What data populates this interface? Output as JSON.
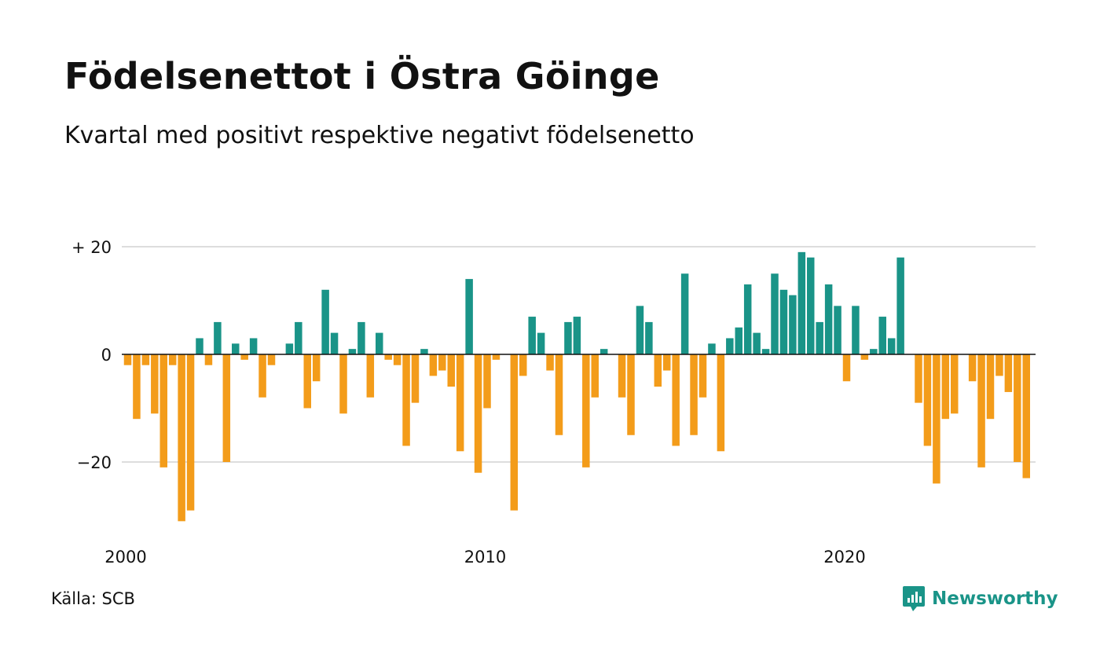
{
  "title": "Födelsenettot i Östra Göinge",
  "subtitle": "Kvartal med positivt respektive negativt födelsenetto",
  "source": "Källa: SCB",
  "brand": "Newsworthy",
  "colors": {
    "positive": "#1a9488",
    "negative": "#f39c1a",
    "grid": "#dddddd",
    "baseline": "#111111"
  },
  "chart_data": {
    "type": "bar",
    "x_start": "2000-Q1",
    "x_ticks": [
      {
        "value": 2000,
        "label": "2000"
      },
      {
        "value": 2010,
        "label": "2010"
      },
      {
        "value": 2020,
        "label": "2020"
      }
    ],
    "y_ticks": [
      {
        "value": 20,
        "label": "+ 20"
      },
      {
        "value": 0,
        "label": "0"
      },
      {
        "value": -20,
        "label": "−20"
      }
    ],
    "ylim": [
      -32,
      20
    ],
    "grid": true,
    "values": [
      -2,
      -12,
      -2,
      -11,
      -21,
      -2,
      -31,
      -29,
      3,
      -2,
      6,
      -20,
      2,
      -1,
      3,
      -8,
      -2,
      0,
      2,
      6,
      -10,
      -5,
      12,
      4,
      -11,
      1,
      6,
      -8,
      4,
      -1,
      -2,
      -17,
      -9,
      1,
      -4,
      -3,
      -6,
      -18,
      14,
      -22,
      -10,
      -1,
      0,
      -29,
      -4,
      7,
      4,
      -3,
      -15,
      6,
      7,
      -21,
      -8,
      1,
      0,
      -8,
      -15,
      9,
      6,
      -6,
      -3,
      -17,
      15,
      -15,
      -8,
      2,
      -18,
      3,
      5,
      13,
      4,
      1,
      15,
      12,
      11,
      19,
      18,
      6,
      13,
      9,
      -5,
      9,
      -1,
      1,
      7,
      3,
      18,
      0,
      -9,
      -17,
      -24,
      -12,
      -11,
      0,
      -5,
      -21,
      -12,
      -4,
      -7,
      -20,
      -23
    ]
  }
}
